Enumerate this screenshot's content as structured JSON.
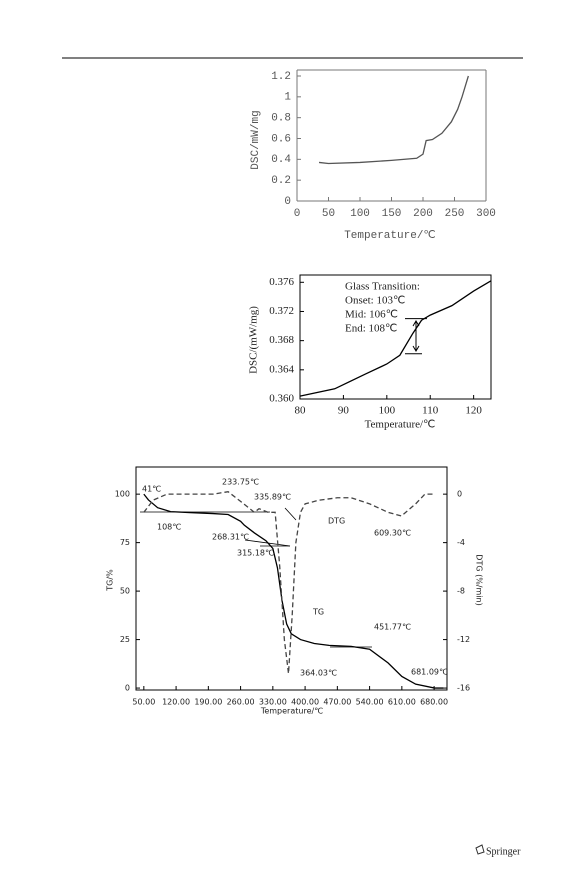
{
  "chart_data": [
    {
      "type": "line",
      "xlabel": "Temperature/℃",
      "ylabel": "DSC/mW/mg",
      "xlim": [
        0,
        300
      ],
      "ylim": [
        0,
        1.2
      ],
      "xticks": [
        0,
        50,
        100,
        150,
        200,
        250,
        300
      ],
      "yticks": [
        0,
        0.2,
        0.4,
        0.6,
        0.8,
        1,
        1.2
      ],
      "color": "#555555",
      "x": [
        35,
        50,
        100,
        150,
        190,
        200,
        205,
        215,
        230,
        245,
        255,
        262,
        268,
        272
      ],
      "values": [
        0.37,
        0.36,
        0.37,
        0.39,
        0.41,
        0.45,
        0.58,
        0.59,
        0.65,
        0.76,
        0.88,
        1.0,
        1.12,
        1.2
      ]
    },
    {
      "type": "line",
      "xlabel": "Temperature/℃",
      "ylabel": "DSC/(mW/mg)",
      "xlim": [
        80,
        124
      ],
      "ylim": [
        0.36,
        0.377
      ],
      "xticks": [
        80,
        90,
        100,
        110,
        120
      ],
      "yticks": [
        {
          "value": 0.36,
          "label": "0.360"
        },
        0.364,
        0.368,
        0.372,
        0.376
      ],
      "color": "#000000",
      "annotations": [
        "Glass Transition:",
        "Onset: 103℃",
        "Mid:   106℃",
        "End:    108℃"
      ],
      "x": [
        80,
        88,
        95,
        100,
        103,
        106,
        108,
        110,
        115,
        120,
        124
      ],
      "values": [
        0.3604,
        0.3614,
        0.3634,
        0.3648,
        0.366,
        0.369,
        0.3708,
        0.3715,
        0.3728,
        0.3748,
        0.3762
      ]
    },
    {
      "type": "line",
      "xlabel": "Temperature/℃",
      "ylabel": "TG/%",
      "y2label": "DTG (%/min)",
      "xlim": [
        33,
        708
      ],
      "ylim": [
        -1,
        114
      ],
      "y2lim": [
        -16.16,
        2.24
      ],
      "xticks": [
        {
          "value": 50,
          "label": "50.00"
        },
        {
          "value": 120,
          "label": "120.00"
        },
        {
          "value": 190,
          "label": "190.00"
        },
        {
          "value": 260,
          "label": "260.00"
        },
        {
          "value": 330,
          "label": "330.00"
        },
        {
          "value": 400,
          "label": "400.00"
        },
        {
          "value": 470,
          "label": "470.00"
        },
        {
          "value": 540,
          "label": "540.00"
        },
        {
          "value": 610,
          "label": "610.00"
        },
        {
          "value": 680,
          "label": "680.00"
        }
      ],
      "yticks": [
        0,
        25,
        50,
        75,
        100
      ],
      "y2ticks": [
        0,
        -4,
        -8,
        -12,
        -16
      ],
      "annotations": [
        "41℃",
        "108℃",
        "233.75℃",
        "335.89℃",
        "268.31℃",
        "315.18℃",
        "451.77℃",
        "364.03℃",
        "681.09℃",
        "609.30℃"
      ],
      "series": [
        {
          "name": "TG",
          "color": "#000000",
          "x": [
            50,
            60,
            80,
            108,
            150,
            200,
            233,
            260,
            268,
            290,
            315,
            330,
            340,
            350,
            360,
            370,
            390,
            420,
            452,
            500,
            540,
            580,
            610,
            640,
            681,
            700
          ],
          "values": [
            100,
            97,
            93,
            91,
            90.5,
            90,
            89.5,
            86,
            84,
            80,
            76,
            72,
            62,
            45,
            33,
            28,
            25,
            23,
            22,
            21.5,
            20,
            13,
            6,
            2,
            0,
            0
          ]
        },
        {
          "name": "DTG",
          "color": "#444444",
          "dashed": true,
          "axis": "y2",
          "x": [
            50,
            70,
            100,
            150,
            200,
            233,
            260,
            290,
            300,
            320,
            335,
            345,
            355,
            364,
            372,
            380,
            390,
            400,
            430,
            470,
            500,
            540,
            580,
            609,
            640,
            660,
            680
          ],
          "values": [
            -1.5,
            -0.5,
            0,
            0,
            0,
            0.2,
            -0.6,
            -1.5,
            -1.2,
            -1.5,
            -1.5,
            -6,
            -12,
            -14.8,
            -10,
            -4,
            -1.5,
            -0.8,
            -0.5,
            -0.3,
            -0.3,
            -0.8,
            -1.5,
            -1.8,
            -0.8,
            0,
            0
          ]
        }
      ]
    }
  ],
  "footer": {
    "publisher": "Springer"
  }
}
